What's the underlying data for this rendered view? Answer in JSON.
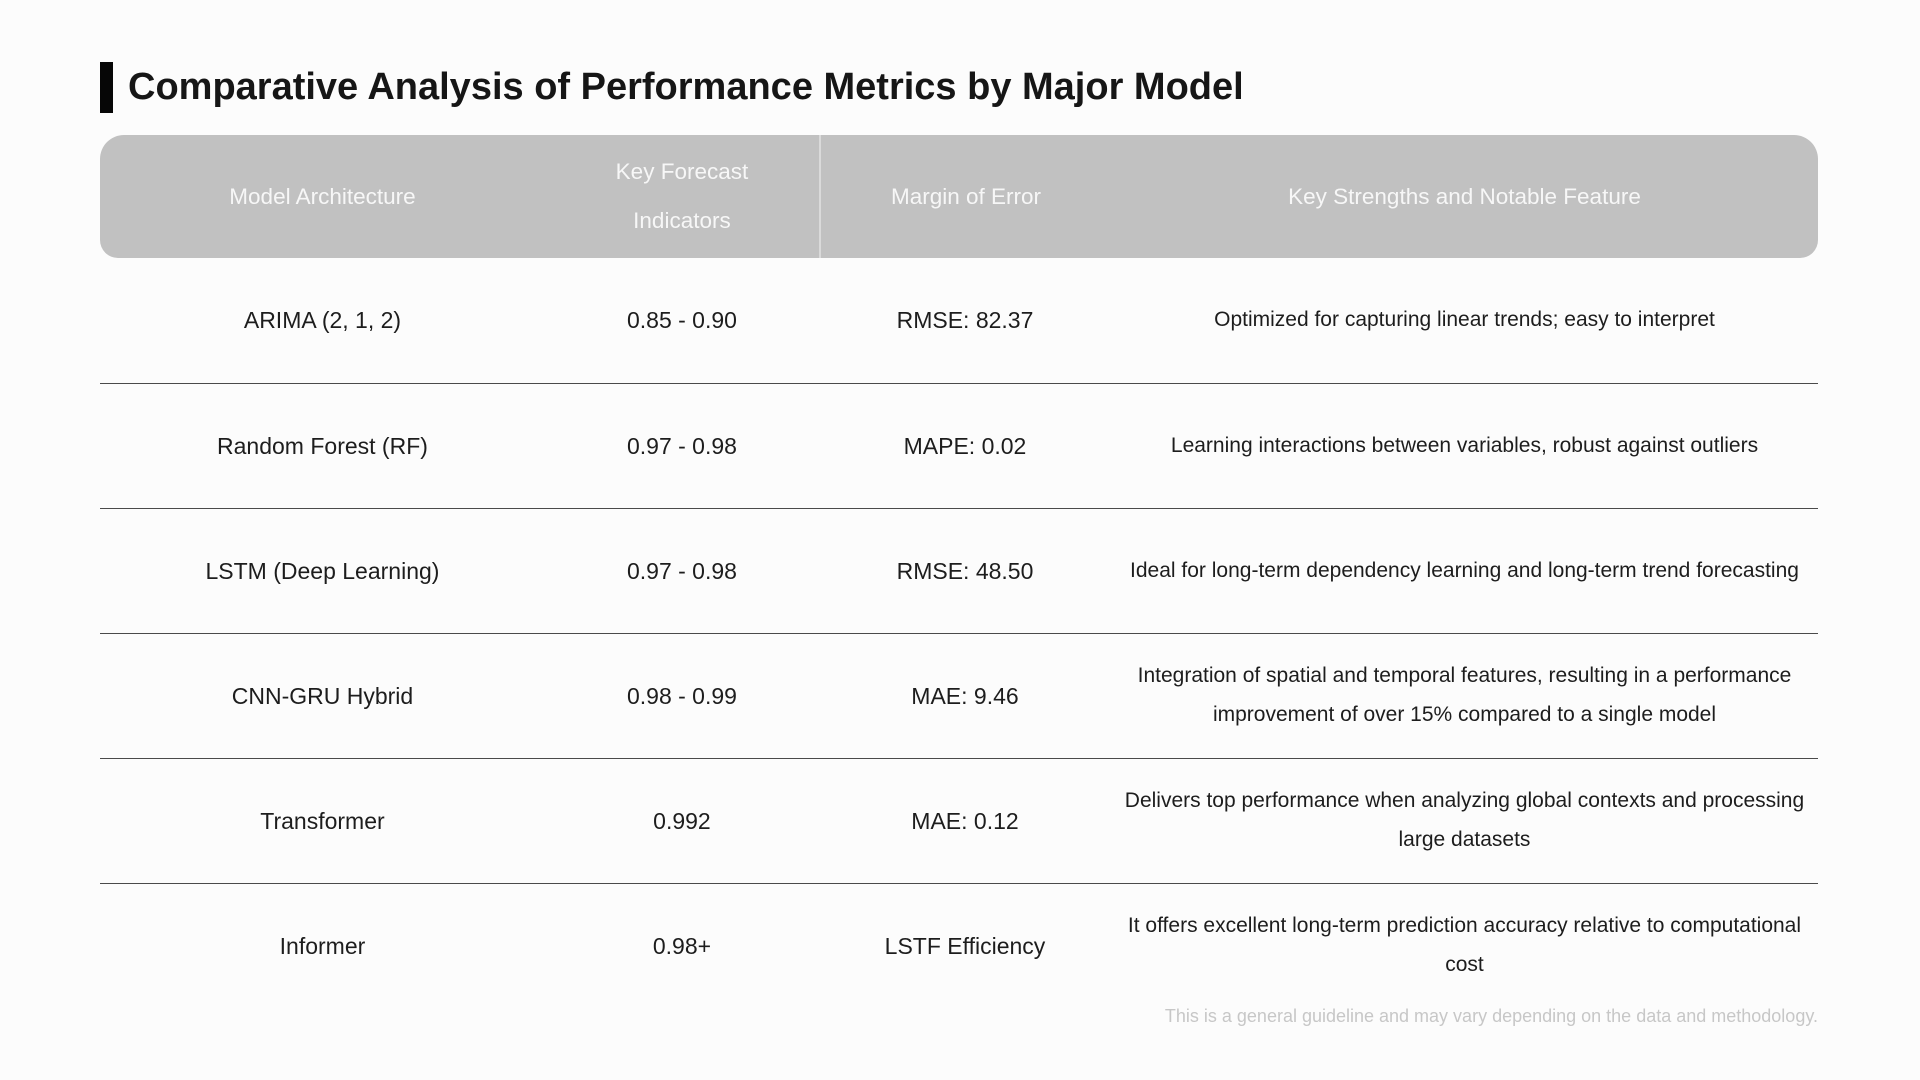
{
  "chart_data": {
    "type": "table",
    "title": "Comparative Analysis of Performance Metrics by Major Model",
    "columns": [
      "Model Architecture",
      "Key Forecast Indicators",
      "Margin of Error",
      "Key Strengths and Notable Feature"
    ],
    "rows": [
      [
        "ARIMA (2, 1, 2)",
        "0.85 - 0.90",
        "RMSE: 82.37",
        "Optimized for capturing linear trends; easy to interpret"
      ],
      [
        "Random Forest (RF)",
        "0.97 - 0.98",
        "MAPE: 0.02",
        "Learning interactions between variables, robust against outliers"
      ],
      [
        "LSTM (Deep Learning)",
        "0.97 - 0.98",
        "RMSE: 48.50",
        "Ideal for long-term dependency learning and long-term trend forecasting"
      ],
      [
        "CNN-GRU Hybrid",
        "0.98 - 0.99",
        "MAE: 9.46",
        "Integration of spatial and temporal features, resulting in a performance improvement of over 15% compared to a single model"
      ],
      [
        "Transformer",
        "0.992",
        "MAE: 0.12",
        "Delivers top performance when analyzing global contexts and processing large datasets"
      ],
      [
        "Informer",
        "0.98+",
        "LSTF Efficiency",
        "It offers excellent long-term prediction accuracy relative to computational cost"
      ]
    ],
    "footnote": "This is a general guideline and may vary depending on the data and methodology.",
    "layout": {
      "header_position": "top",
      "grid": "horizontal-row-dividers-only",
      "column_alignment": "center"
    }
  },
  "colors": {
    "page_background": "#fcfcfc",
    "title_text": "#161616",
    "title_accent_bar": "#060606",
    "header_background": "#c1c1c1",
    "header_text": "#f7f7f7",
    "header_column_divider": "#dadada",
    "row_divider": "#4a4a4a",
    "body_text": "#1d1d1d",
    "footnote_text": "#c7c7c7"
  }
}
